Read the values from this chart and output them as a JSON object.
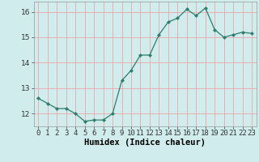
{
  "x": [
    0,
    1,
    2,
    3,
    4,
    5,
    6,
    7,
    8,
    9,
    10,
    11,
    12,
    13,
    14,
    15,
    16,
    17,
    18,
    19,
    20,
    21,
    22,
    23
  ],
  "y": [
    12.6,
    12.4,
    12.2,
    12.2,
    12.0,
    11.7,
    11.75,
    11.75,
    12.0,
    13.3,
    13.7,
    14.3,
    14.3,
    15.1,
    15.6,
    15.75,
    16.1,
    15.85,
    16.15,
    15.3,
    15.0,
    15.1,
    15.2,
    15.15
  ],
  "xlabel": "Humidex (Indice chaleur)",
  "ylim": [
    11.5,
    16.4
  ],
  "xlim": [
    -0.5,
    23.5
  ],
  "yticks": [
    12,
    13,
    14,
    15,
    16
  ],
  "xtick_labels": [
    "0",
    "1",
    "2",
    "3",
    "4",
    "5",
    "6",
    "7",
    "8",
    "9",
    "10",
    "11",
    "12",
    "13",
    "14",
    "15",
    "16",
    "17",
    "18",
    "19",
    "20",
    "21",
    "22",
    "23"
  ],
  "line_color": "#2e7d6e",
  "marker_color": "#2e7d6e",
  "bg_color": "#d0ecec",
  "grid_color": "#e8b0b0",
  "tick_fontsize": 6.5,
  "xlabel_fontsize": 7.5
}
